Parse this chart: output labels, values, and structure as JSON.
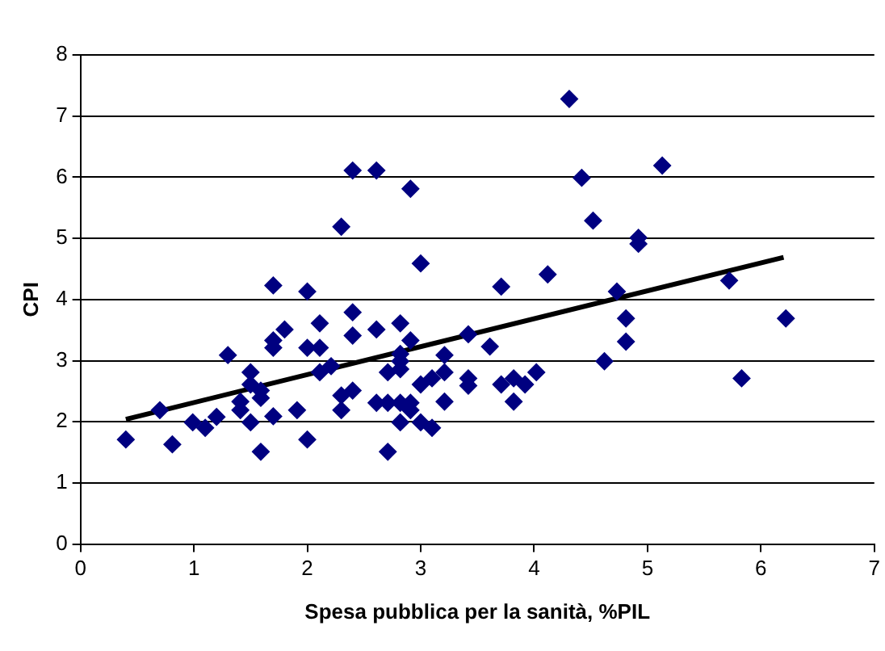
{
  "chart_data": {
    "type": "scatter",
    "xlabel": "Spesa pubblica per la sanità, %PIL",
    "ylabel": "CPI",
    "xlim": [
      0,
      7
    ],
    "xticks": [
      0,
      1,
      2,
      3,
      4,
      5,
      6,
      7
    ],
    "ylim": [
      0,
      8
    ],
    "yticks": [
      0,
      1,
      2,
      3,
      4,
      5,
      6,
      7,
      8
    ],
    "grid": "y",
    "legend": false,
    "marker": "diamond",
    "series": [
      {
        "type": "scatter",
        "color": "#000080",
        "x": [
          0.4,
          0.7,
          0.81,
          0.99,
          1.1,
          1.2,
          1.3,
          1.41,
          1.41,
          1.5,
          1.5,
          1.5,
          1.59,
          1.59,
          1.59,
          1.7,
          1.7,
          1.7,
          1.7,
          1.8,
          1.91,
          2.0,
          2.0,
          2.0,
          2.11,
          2.11,
          2.11,
          2.21,
          2.3,
          2.3,
          2.3,
          2.4,
          2.4,
          2.4,
          2.4,
          2.61,
          2.61,
          2.61,
          2.71,
          2.71,
          2.71,
          2.82,
          2.82,
          2.82,
          2.82,
          2.82,
          2.82,
          2.91,
          2.91,
          2.91,
          2.91,
          3.0,
          3.0,
          3.0,
          3.1,
          3.1,
          3.21,
          3.21,
          3.21,
          3.42,
          3.42,
          3.42,
          3.61,
          3.71,
          3.71,
          3.82,
          3.82,
          3.92,
          4.02,
          4.12,
          4.31,
          4.42,
          4.52,
          4.62,
          4.73,
          4.81,
          4.81,
          4.92,
          4.92,
          5.13,
          5.72,
          5.83,
          6.22
        ],
        "values": [
          1.71,
          2.19,
          1.63,
          1.99,
          1.9,
          2.08,
          3.09,
          2.33,
          2.19,
          2.81,
          2.61,
          1.99,
          2.51,
          2.39,
          1.51,
          4.23,
          3.33,
          3.21,
          2.09,
          3.51,
          2.19,
          4.13,
          3.21,
          1.71,
          3.61,
          3.21,
          2.81,
          2.91,
          5.19,
          2.43,
          2.19,
          6.11,
          3.79,
          3.41,
          2.51,
          6.11,
          3.51,
          2.31,
          2.81,
          2.31,
          1.51,
          3.61,
          3.11,
          2.99,
          2.86,
          2.31,
          1.99,
          5.81,
          3.33,
          2.31,
          2.19,
          4.59,
          2.61,
          1.99,
          2.71,
          1.9,
          3.09,
          2.81,
          2.33,
          3.43,
          2.71,
          2.59,
          3.23,
          4.21,
          2.61,
          2.71,
          2.33,
          2.61,
          2.81,
          4.41,
          7.28,
          5.99,
          5.29,
          2.99,
          4.13,
          3.69,
          3.31,
          5.01,
          4.91,
          6.19,
          4.31,
          2.71,
          3.69
        ]
      },
      {
        "type": "line",
        "color": "#000000",
        "marker": "none",
        "x": [
          0.4,
          6.2
        ],
        "values": [
          2.04,
          4.69
        ]
      }
    ]
  }
}
